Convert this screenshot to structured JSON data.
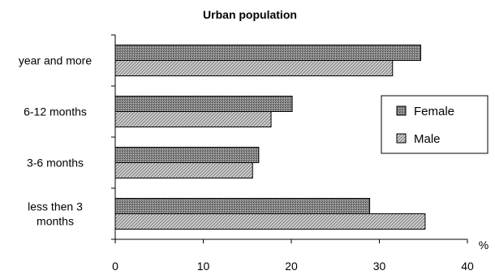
{
  "chart_data": {
    "type": "bar",
    "orientation": "horizontal",
    "title": "Urban population",
    "categories": [
      "year and more",
      "6-12 months",
      "3-6 months",
      "less then 3 months"
    ],
    "category_label_lines": [
      [
        "year and more"
      ],
      [
        "6-12 months"
      ],
      [
        "3-6 months"
      ],
      [
        "less then 3",
        "months"
      ]
    ],
    "series": [
      {
        "name": "Female",
        "values": [
          34.7,
          20.1,
          16.3,
          28.9
        ],
        "color": "#8c8c8c",
        "pattern": "dense-dots"
      },
      {
        "name": "Male",
        "values": [
          31.5,
          17.7,
          15.6,
          35.2
        ],
        "color": "#c8c8c8",
        "pattern": "diagonal-lines"
      }
    ],
    "xlim": [
      0,
      40
    ],
    "x_ticks": [
      0,
      10,
      20,
      30,
      40
    ],
    "xlabel": "",
    "ylabel": "",
    "x_unit": "%",
    "grid": false,
    "legend_position": "right"
  }
}
